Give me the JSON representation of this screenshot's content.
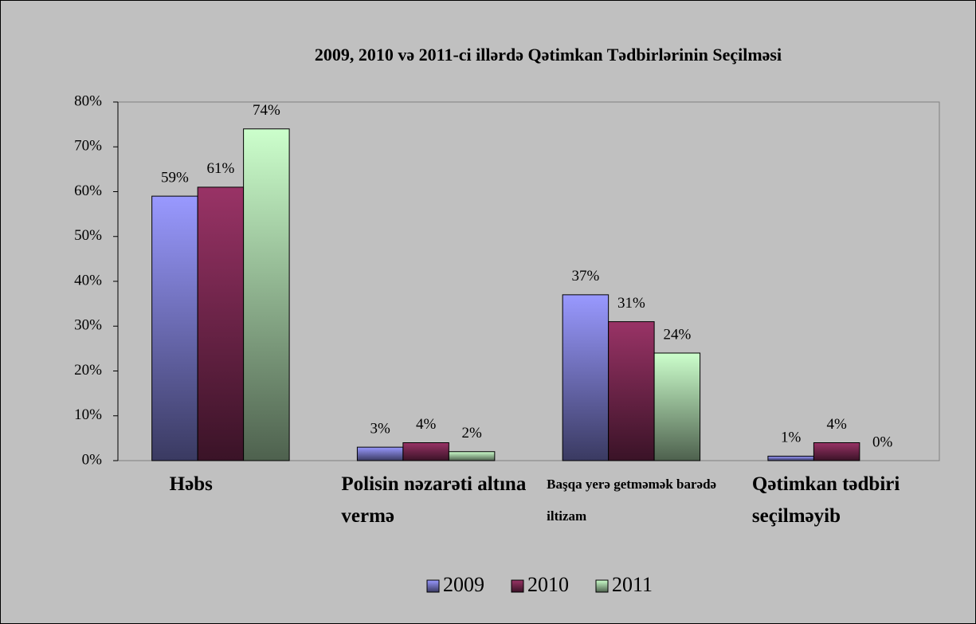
{
  "chart_data": {
    "type": "bar",
    "title": "2009, 2010 və 2011-ci illərdə Qətimkan Tədbirlərinin Seçilməsi",
    "categories": [
      "Həbs",
      "Polisin nəzarəti altına vermə",
      "Başqa yerə getməmək barədə iltizam",
      "Qətimkan tədbiri seçilməyib"
    ],
    "series": [
      {
        "name": "2009",
        "color": "#9999ff",
        "values": [
          59,
          3,
          37,
          1
        ],
        "value_labels": [
          "59%",
          "3%",
          "37%",
          "1%"
        ]
      },
      {
        "name": "2010",
        "color": "#993366",
        "values": [
          61,
          4,
          31,
          4
        ],
        "value_labels": [
          "61%",
          "4%",
          "31%",
          "4%"
        ]
      },
      {
        "name": "2011",
        "color": "#ccffcc",
        "values": [
          74,
          2,
          24,
          0
        ],
        "value_labels": [
          "74%",
          "2%",
          "24%",
          "0%"
        ]
      }
    ],
    "ylim": [
      0,
      80
    ],
    "yticks": [
      {
        "value": 0,
        "label": "0%"
      },
      {
        "value": 10,
        "label": "10%"
      },
      {
        "value": 20,
        "label": "20%"
      },
      {
        "value": 30,
        "label": "30%"
      },
      {
        "value": 40,
        "label": "40%"
      },
      {
        "value": 50,
        "label": "50%"
      },
      {
        "value": 60,
        "label": "60%"
      },
      {
        "value": 70,
        "label": "70%"
      },
      {
        "value": 80,
        "label": "80%"
      }
    ],
    "grid": false,
    "legend": "bottom"
  }
}
